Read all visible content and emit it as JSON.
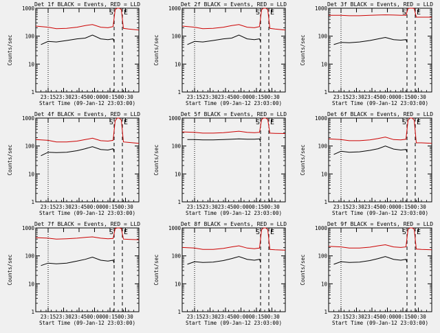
{
  "chart_data": {
    "type": "line",
    "layout": "3x3 grid",
    "start_time_label": "Start Time (09-Jan-12 23:03:00)",
    "ylabel": "Counts/sec",
    "yscale": "log",
    "ylim": [
      1,
      1000
    ],
    "y_ticks": [
      "1000",
      "100",
      "10",
      "1"
    ],
    "x_ticks": [
      "23:15",
      "23:30",
      "23:45",
      "00:00",
      "00:15",
      "00:30"
    ],
    "x_range_minutes": [
      0,
      100
    ],
    "dotted_line_minute": 12,
    "dashed_line_minutes": [
      76,
      84
    ],
    "marker_labels": [
      "S",
      "E"
    ],
    "colors": {
      "events": "#000000",
      "lld": "#cc0000",
      "background": "#f0f0f0"
    },
    "panels": [
      {
        "title": "Det 1f BLACK = Events, RED = LLD",
        "series": [
          {
            "name": "Events",
            "color": "#000000",
            "x": [
              5,
              12,
              20,
              30,
              40,
              48,
              55,
              63,
              70,
              75,
              76
            ],
            "y": [
              50,
              65,
              62,
              70,
              80,
              85,
              110,
              80,
              75,
              80,
              62
            ]
          },
          {
            "name": "LLD",
            "color": "#cc0000",
            "x": [
              0,
              12,
              20,
              30,
              40,
              48,
              55,
              63,
              70,
              75,
              77,
              79,
              81,
              83,
              85,
              90,
              100
            ],
            "y": [
              230,
              210,
              185,
              190,
              210,
              240,
              260,
              210,
              200,
              220,
              900,
              1000,
              1000,
              900,
              190,
              180,
              165
            ]
          }
        ]
      },
      {
        "title": "Det 2f BLACK = Events, RED = LLD",
        "series": [
          {
            "name": "Events",
            "color": "#000000",
            "x": [
              5,
              12,
              20,
              30,
              40,
              48,
              55,
              63,
              70,
              75,
              76
            ],
            "y": [
              50,
              65,
              62,
              70,
              80,
              85,
              110,
              80,
              75,
              80,
              62
            ]
          },
          {
            "name": "LLD",
            "color": "#cc0000",
            "x": [
              0,
              12,
              20,
              30,
              40,
              48,
              55,
              63,
              70,
              75,
              77,
              79,
              81,
              83,
              85,
              90,
              100
            ],
            "y": [
              230,
              210,
              185,
              190,
              210,
              240,
              260,
              210,
              200,
              220,
              900,
              1000,
              1000,
              900,
              190,
              180,
              165
            ]
          }
        ]
      },
      {
        "title": "Det 3f BLACK = Events, RED = LLD",
        "series": [
          {
            "name": "Events",
            "color": "#000000",
            "x": [
              5,
              12,
              20,
              30,
              40,
              48,
              55,
              63,
              70,
              75,
              76
            ],
            "y": [
              50,
              60,
              58,
              62,
              70,
              80,
              90,
              75,
              72,
              75,
              60
            ]
          },
          {
            "name": "LLD",
            "color": "#cc0000",
            "x": [
              0,
              12,
              20,
              30,
              40,
              48,
              55,
              63,
              70,
              75,
              77,
              79,
              81,
              83,
              85,
              90,
              100
            ],
            "y": [
              560,
              560,
              540,
              540,
              560,
              570,
              580,
              570,
              560,
              560,
              980,
              1000,
              1000,
              980,
              480,
              480,
              480
            ]
          }
        ]
      },
      {
        "title": "Det 4f BLACK = Events, RED = LLD",
        "series": [
          {
            "name": "Events",
            "color": "#000000",
            "x": [
              5,
              12,
              20,
              30,
              40,
              48,
              55,
              63,
              70,
              75,
              76
            ],
            "y": [
              45,
              60,
              58,
              60,
              68,
              80,
              95,
              75,
              72,
              80,
              60
            ]
          },
          {
            "name": "LLD",
            "color": "#cc0000",
            "x": [
              0,
              12,
              20,
              30,
              40,
              48,
              55,
              63,
              70,
              75,
              77,
              79,
              81,
              83,
              85,
              90,
              100
            ],
            "y": [
              170,
              160,
              140,
              140,
              150,
              170,
              190,
              155,
              150,
              160,
              800,
              1000,
              1000,
              850,
              140,
              135,
              125
            ]
          }
        ]
      },
      {
        "title": "Det 5f BLACK = Events, RED = LLD",
        "series": [
          {
            "name": "Events",
            "color": "#000000",
            "x": [
              5,
              12,
              20,
              30,
              40,
              48,
              55,
              63,
              70,
              75,
              76
            ],
            "y": [
              170,
              170,
              165,
              165,
              170,
              175,
              180,
              175,
              175,
              180,
              140
            ]
          },
          {
            "name": "LLD",
            "color": "#cc0000",
            "x": [
              0,
              12,
              20,
              30,
              40,
              48,
              55,
              63,
              70,
              75,
              77,
              79,
              81,
              83,
              85,
              90,
              100
            ],
            "y": [
              320,
              310,
              290,
              290,
              300,
              320,
              340,
              310,
              300,
              310,
              900,
              1000,
              1000,
              900,
              290,
              285,
              280
            ]
          }
        ]
      },
      {
        "title": "Det 6f BLACK = Events, RED = LLD",
        "series": [
          {
            "name": "Events",
            "color": "#000000",
            "x": [
              5,
              12,
              20,
              30,
              40,
              48,
              55,
              63,
              70,
              75,
              76
            ],
            "y": [
              50,
              65,
              60,
              62,
              70,
              80,
              100,
              78,
              72,
              75,
              60
            ]
          },
          {
            "name": "LLD",
            "color": "#cc0000",
            "x": [
              0,
              12,
              20,
              30,
              40,
              48,
              55,
              63,
              70,
              75,
              77,
              79,
              81,
              83,
              85,
              90,
              100
            ],
            "y": [
              180,
              170,
              155,
              155,
              165,
              185,
              210,
              170,
              165,
              175,
              850,
              1000,
              1000,
              850,
              130,
              130,
              125
            ]
          }
        ]
      },
      {
        "title": "Det 7f BLACK = Events, RED = LLD",
        "series": [
          {
            "name": "Events",
            "color": "#000000",
            "x": [
              5,
              12,
              20,
              30,
              40,
              48,
              55,
              63,
              70,
              75,
              76
            ],
            "y": [
              45,
              55,
              52,
              55,
              65,
              75,
              90,
              70,
              65,
              70,
              55
            ]
          },
          {
            "name": "LLD",
            "color": "#cc0000",
            "x": [
              0,
              12,
              20,
              30,
              40,
              48,
              55,
              63,
              70,
              75,
              77,
              79,
              81,
              83,
              85,
              90,
              100
            ],
            "y": [
              450,
              430,
              400,
              410,
              430,
              460,
              480,
              430,
              410,
              420,
              950,
              1000,
              1000,
              950,
              400,
              390,
              380
            ]
          }
        ]
      },
      {
        "title": "Det 8f BLACK = Events, RED = LLD",
        "series": [
          {
            "name": "Events",
            "color": "#000000",
            "x": [
              5,
              12,
              20,
              30,
              40,
              48,
              55,
              63,
              70,
              75,
              76
            ],
            "y": [
              50,
              62,
              58,
              60,
              68,
              80,
              95,
              75,
              70,
              75,
              58
            ]
          },
          {
            "name": "LLD",
            "color": "#cc0000",
            "x": [
              0,
              12,
              20,
              30,
              40,
              48,
              55,
              63,
              70,
              75,
              77,
              79,
              81,
              83,
              85,
              90,
              100
            ],
            "y": [
              200,
              190,
              170,
              170,
              185,
              210,
              230,
              190,
              180,
              190,
              880,
              1000,
              1000,
              880,
              170,
              165,
              160
            ]
          }
        ]
      },
      {
        "title": "Det 9f BLACK = Events, RED = LLD",
        "series": [
          {
            "name": "Events",
            "color": "#000000",
            "x": [
              5,
              12,
              20,
              30,
              40,
              48,
              55,
              63,
              70,
              75,
              76
            ],
            "y": [
              50,
              62,
              58,
              60,
              68,
              80,
              95,
              75,
              70,
              75,
              58
            ]
          },
          {
            "name": "LLD",
            "color": "#cc0000",
            "x": [
              0,
              12,
              20,
              30,
              40,
              48,
              55,
              63,
              70,
              75,
              77,
              79,
              81,
              83,
              85,
              90,
              100
            ],
            "y": [
              220,
              210,
              190,
              190,
              205,
              230,
              250,
              210,
              200,
              210,
              900,
              1000,
              1000,
              900,
              175,
              170,
              165
            ]
          }
        ]
      }
    ]
  }
}
